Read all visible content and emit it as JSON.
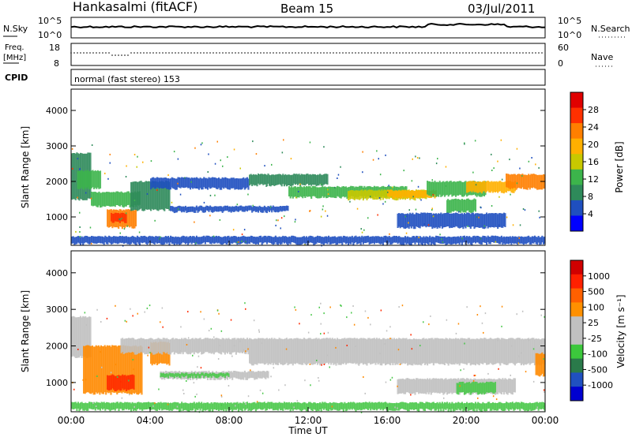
{
  "header": {
    "station": "Hankasalmi (fitACF)",
    "beam": "Beam 15",
    "date": "03/Jul/2011"
  },
  "noise_panel": {
    "left_label": "N.Sky",
    "right_label": "N.Search",
    "left_ticks": [
      "10^5",
      "10^0"
    ],
    "right_ticks": [
      "10^5",
      "10^0"
    ]
  },
  "freq_panel": {
    "left_label_top": "Freq.",
    "left_label_unit": "[MHz]",
    "right_label": "Nave",
    "left_ticks": [
      "18",
      "8"
    ],
    "right_ticks": [
      "60",
      "0"
    ]
  },
  "cpid_panel": {
    "label": "CPID",
    "text": "normal (fast stereo) 153"
  },
  "x_axis": {
    "label": "Time UT",
    "ticks": [
      "00:00",
      "04:00",
      "08:00",
      "12:00",
      "16:00",
      "20:00",
      "00:00"
    ]
  },
  "colors": {
    "power_scale": [
      "#0000ff",
      "#1f4fbf",
      "#2e8a5a",
      "#3cb44b",
      "#c8c800",
      "#ffb000",
      "#ff7f00",
      "#ff3000",
      "#e00000"
    ],
    "velocity_scale": [
      "#0000d0",
      "#2050c0",
      "#2a7a4a",
      "#3cc83c",
      "#c0c0c0",
      "#c0c0c0",
      "#ff9000",
      "#ff6000",
      "#ff2000",
      "#d00000"
    ]
  },
  "chart_data": [
    {
      "type": "heatmap",
      "name": "power",
      "ylabel": "Slant Range [km]",
      "xlabel": "",
      "xlim": [
        0,
        24
      ],
      "ylim": [
        200,
        4600
      ],
      "yticks": [
        "1000",
        "2000",
        "3000",
        "4000"
      ],
      "colorbar": {
        "label": "Power [dB]",
        "ticks": [
          "4",
          "8",
          "12",
          "16",
          "20",
          "24",
          "28"
        ],
        "range": [
          0,
          32
        ]
      },
      "bands": [
        {
          "t0": 0.0,
          "t1": 1.0,
          "r0": 1500,
          "r1": 2800,
          "level": 8
        },
        {
          "t0": 0.3,
          "t1": 1.5,
          "r0": 1800,
          "r1": 2300,
          "level": 14
        },
        {
          "t0": 1.0,
          "t1": 3.5,
          "r0": 1300,
          "r1": 1700,
          "level": 14
        },
        {
          "t0": 1.8,
          "t1": 3.3,
          "r0": 700,
          "r1": 1200,
          "level": 22
        },
        {
          "t0": 2.0,
          "t1": 2.8,
          "r0": 850,
          "r1": 1100,
          "level": 28
        },
        {
          "t0": 3.0,
          "t1": 5.0,
          "r0": 1200,
          "r1": 2000,
          "level": 10
        },
        {
          "t0": 4.0,
          "t1": 9.0,
          "r0": 1800,
          "r1": 2100,
          "level": 6
        },
        {
          "t0": 5.0,
          "t1": 11.0,
          "r0": 1150,
          "r1": 1300,
          "level": 5
        },
        {
          "t0": 9.0,
          "t1": 13.0,
          "r0": 1900,
          "r1": 2200,
          "level": 8
        },
        {
          "t0": 11.0,
          "t1": 17.0,
          "r0": 1550,
          "r1": 1850,
          "level": 12
        },
        {
          "t0": 14.0,
          "t1": 18.0,
          "r0": 1500,
          "r1": 1750,
          "level": 16
        },
        {
          "t0": 16.0,
          "t1": 18.5,
          "r0": 1550,
          "r1": 1750,
          "level": 20
        },
        {
          "t0": 18.0,
          "t1": 21.0,
          "r0": 1600,
          "r1": 2000,
          "level": 14
        },
        {
          "t0": 19.0,
          "t1": 20.5,
          "r0": 1150,
          "r1": 1500,
          "level": 12
        },
        {
          "t0": 20.0,
          "t1": 22.5,
          "r0": 1700,
          "r1": 2000,
          "level": 18
        },
        {
          "t0": 22.0,
          "t1": 24.0,
          "r0": 1800,
          "r1": 2200,
          "level": 22
        },
        {
          "t0": 16.5,
          "t1": 22.0,
          "r0": 700,
          "r1": 1100,
          "level": 6
        },
        {
          "t0": 0.0,
          "t1": 24.0,
          "r0": 250,
          "r1": 450,
          "level": 4
        }
      ]
    },
    {
      "type": "heatmap",
      "name": "velocity",
      "ylabel": "Slant Range [km]",
      "xlabel": "Time UT",
      "xlim": [
        0,
        24
      ],
      "ylim": [
        200,
        4600
      ],
      "yticks": [
        "1000",
        "2000",
        "3000",
        "4000"
      ],
      "colorbar": {
        "label": "Velocity [m s⁻¹]",
        "ticks": [
          "1000",
          "500",
          "100",
          "25",
          "-25",
          "-100",
          "-500",
          "-1000"
        ]
      },
      "bands": [
        {
          "t0": 0.0,
          "t1": 1.0,
          "r0": 1700,
          "r1": 2800,
          "class": "gray"
        },
        {
          "t0": 0.6,
          "t1": 3.6,
          "r0": 700,
          "r1": 2000,
          "class": "orange"
        },
        {
          "t0": 1.8,
          "t1": 3.2,
          "r0": 800,
          "r1": 1200,
          "class": "red"
        },
        {
          "t0": 4.0,
          "t1": 5.0,
          "r0": 1500,
          "r1": 2100,
          "class": "orange"
        },
        {
          "t0": 2.5,
          "t1": 9.0,
          "r0": 1800,
          "r1": 2200,
          "class": "gray"
        },
        {
          "t0": 4.5,
          "t1": 10.0,
          "r0": 1100,
          "r1": 1300,
          "class": "gray"
        },
        {
          "t0": 4.5,
          "t1": 8.0,
          "r0": 1150,
          "r1": 1250,
          "class": "green"
        },
        {
          "t0": 9.0,
          "t1": 24.0,
          "r0": 1500,
          "r1": 2200,
          "class": "gray"
        },
        {
          "t0": 16.5,
          "t1": 22.5,
          "r0": 700,
          "r1": 1100,
          "class": "gray"
        },
        {
          "t0": 19.5,
          "t1": 21.5,
          "r0": 700,
          "r1": 1000,
          "class": "green"
        },
        {
          "t0": 23.5,
          "t1": 24.0,
          "r0": 1200,
          "r1": 1800,
          "class": "orange"
        },
        {
          "t0": 0.0,
          "t1": 24.0,
          "r0": 250,
          "r1": 450,
          "class": "green"
        }
      ]
    }
  ]
}
